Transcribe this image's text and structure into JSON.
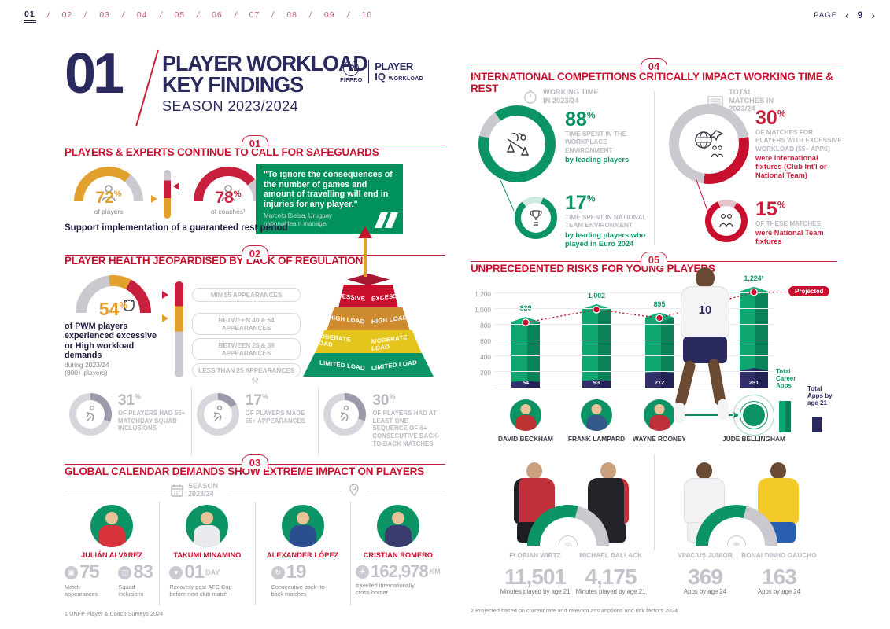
{
  "palette": {
    "navy": "#2b2a5e",
    "crimson": "#c8102e",
    "green": "#0c9465",
    "gold": "#e2a02c",
    "gray": "#b9b9c3",
    "nav_pink": "#c0596b"
  },
  "nav": {
    "pages": [
      "01",
      "02",
      "03",
      "04",
      "05",
      "06",
      "07",
      "08",
      "09",
      "10"
    ],
    "active_page": "01",
    "separator": "/",
    "page_label": "PAGE",
    "prev": "‹",
    "next": "›",
    "current_page": "9"
  },
  "masthead": {
    "number": "01",
    "title_line1": "PLAYER WORKLOAD",
    "title_line2": "KEY FINDINGS",
    "subtitle": "SEASON 2023/2024",
    "logo": {
      "p": "P",
      "fifpro": "FIFPRO",
      "player": "PLAYER",
      "iq": "IQ",
      "workload": "WORKLOAD"
    }
  },
  "s1": {
    "badge": "01",
    "title": "PLAYERS & EXPERTS CONTINUE TO CALL FOR SAFEGUARDS",
    "gauge_players": {
      "value": "72",
      "unit": "%",
      "label": "of players"
    },
    "gauge_coaches": {
      "value": "78",
      "unit": "%",
      "label": "of coaches¹"
    },
    "support_text": "Support implementation of a guaranteed rest period",
    "quote": {
      "text": "\"To ignore the consequences of the number of games and amount of travelling will end in injuries for any player.\"",
      "author": "Marcelo Bielsa, Uruguay",
      "role": "national team manager"
    }
  },
  "s2": {
    "badge": "02",
    "title": "PLAYER HEALTH JEOPARDISED BY LACK OF REGULATION",
    "stat": {
      "value": "54",
      "unit": "%",
      "text": "of PWM players experienced excessive or High workload demands",
      "sub1": "during 2023/24",
      "sub2": "(800+ players)"
    },
    "tiers": [
      "MIN 55 APPEARANCES",
      "BETWEEN 40 & 54 APPEARANCES",
      "BETWEEN 25 & 39 APPEARANCES",
      "LESS THAN 25 APPEARANCES"
    ],
    "pyramid": [
      "EXCESSIVE",
      "HIGH LOAD",
      "MODERATE LOAD",
      "LIMITED LOAD"
    ],
    "donuts": [
      {
        "value": "31",
        "unit": "%",
        "label": "OF PLAYERS HAD 55+ MATCHDAY SQUAD INCLUSIONS"
      },
      {
        "value": "17",
        "unit": "%",
        "label": "OF PLAYERS MADE 55+ APPEARANCES"
      },
      {
        "value": "30",
        "unit": "%",
        "label": "OF PLAYERS HAD AT LEAST ONE SEQUENCE OF 6+ CONSECUTIVE BACK-TO-BACK MATCHES"
      }
    ]
  },
  "s3": {
    "badge": "03",
    "title": "GLOBAL CALENDAR DEMANDS SHOW EXTREME IMPACT ON PLAYERS",
    "season_label": "SEASON 2023/24",
    "players": [
      {
        "name": "JULIÁN ALVAREZ",
        "stats": [
          {
            "value": "75",
            "unit": "",
            "label": "Match appearances"
          },
          {
            "value": "83",
            "unit": "",
            "label": "Squad inclusions"
          }
        ]
      },
      {
        "name": "TAKUMI MINAMINO",
        "stats": [
          {
            "value": "01",
            "unit": "DAY",
            "label": "Recovery post-AFC Cup before next club match"
          }
        ]
      },
      {
        "name": "ALEXANDER LÓPEZ",
        "stats": [
          {
            "value": "19",
            "unit": "",
            "label": "Consecutive back- to-back matches"
          }
        ]
      },
      {
        "name": "CRISTIAN ROMERO",
        "stats": [
          {
            "value": "162,978",
            "unit": "KM",
            "label": "travelled internationally cross-border"
          }
        ]
      }
    ],
    "footnote": "1  UNFP Player & Coach Surveys 2024"
  },
  "s4": {
    "badge": "04",
    "title": "INTERNATIONAL COMPETITIONS CRITICALLY IMPACT WORKING TIME & REST",
    "left_header": "WORKING TIME IN 2023/24",
    "right_header": "TOTAL MATCHES IN 2023/24",
    "stat_88": {
      "value": "88",
      "unit": "%",
      "gray": "TIME SPENT IN THE WORKPLACE ENVIRONMENT",
      "bold": "by leading players"
    },
    "stat_17": {
      "value": "17",
      "unit": "%",
      "gray": "TIME SPENT IN NATIONAL TEAM ENVIRONMENT",
      "bold": "by leading players who played in Euro 2024"
    },
    "stat_30": {
      "value": "30",
      "unit": "%",
      "gray": "OF MATCHES FOR PLAYERS WITH EXCESSIVE WORKLOAD (55+ APPS)",
      "bold": "were international fixtures (Club Int'l or National Team)"
    },
    "stat_15": {
      "value": "15",
      "unit": "%",
      "gray": "OF THESE MATCHES",
      "bold": "were National Team fixtures"
    }
  },
  "s5": {
    "badge": "05",
    "title": "UNPRECEDENTED RISKS FOR YOUNG PLAYERS",
    "projected_label": "Projected",
    "jersey_number": "10",
    "legend_career": "Total Career Apps",
    "legend_young": "Total Apps by age 21",
    "players": [
      "DAVID BECKHAM",
      "FRANK LAMPARD",
      "WAYNE ROONEY",
      "JUDE BELLINGHAM"
    ],
    "bottom": [
      {
        "name": "FLORIAN WIRTZ",
        "value": "11,501",
        "label": "Minutes played by age 21"
      },
      {
        "name": "MICHAEL BALLACK",
        "value": "4,175",
        "label": "Minutes played by age 21"
      },
      {
        "name": "VINICIUS JUNIOR",
        "value": "369",
        "label": "Apps by age 24"
      },
      {
        "name": "RONALDINHO GAUCHO",
        "value": "163",
        "label": "Apps by age 24"
      }
    ],
    "footnote": "2  Projected based on current rate and relevant assumptions and risk factors 2024"
  },
  "chart_data": {
    "type": "bar",
    "title": "UNPRECEDENTED RISKS FOR YOUNG PLAYERS",
    "categories": [
      "DAVID BECKHAM",
      "FRANK LAMPARD",
      "WAYNE ROONEY",
      "JUDE BELLINGHAM"
    ],
    "series": [
      {
        "name": "Total Career Apps",
        "values": [
          839,
          1002,
          895,
          1224
        ],
        "color": "#0c9465"
      },
      {
        "name": "Total Apps by age 21",
        "values": [
          54,
          93,
          212,
          251
        ],
        "color": "#2b2a5e"
      }
    ],
    "bar_value_labels": [
      "839",
      "1,002",
      "895",
      "1,224²"
    ],
    "inner_value_labels": [
      "54",
      "93",
      "212",
      "251"
    ],
    "yticks": [
      200,
      400,
      600,
      800,
      1000,
      1200
    ],
    "ytick_labels": [
      "200",
      "400",
      "600",
      "800",
      "1,000",
      "1,200"
    ],
    "ylim": [
      0,
      1300
    ],
    "grid": true,
    "legend_position": "right",
    "annotation": "Projected",
    "projected_index": 3,
    "trend_line": "dotted-red-through-bar-tops"
  }
}
